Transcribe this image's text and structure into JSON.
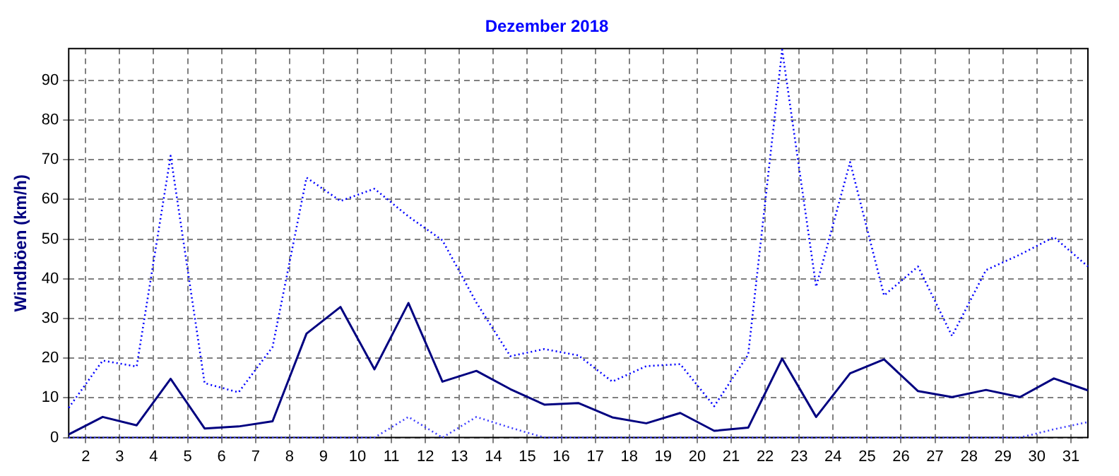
{
  "chart_data": {
    "type": "line",
    "title": "Dezember 2018",
    "ylabel": "Windböen (km/h)",
    "x": [
      1.5,
      2.5,
      3.5,
      4.5,
      5.5,
      6.5,
      7.5,
      8.5,
      9.5,
      10.5,
      11.5,
      12.5,
      13.5,
      14.5,
      15.5,
      16.5,
      17.5,
      18.5,
      19.5,
      20.5,
      21.5,
      22.5,
      23.5,
      24.5,
      25.5,
      26.5,
      27.5,
      28.5,
      29.5,
      30.5,
      31.5
    ],
    "series": [
      {
        "color": "#0000ff",
        "line_style": "dotted",
        "values": [
          7.5,
          19.4,
          17.9,
          71,
          13.7,
          11.4,
          22.8,
          65.5,
          59.6,
          62.7,
          55.7,
          49.7,
          34,
          20.5,
          22.3,
          20.7,
          14.1,
          18,
          18.5,
          7.9,
          20.9,
          97.7,
          38,
          69.4,
          35.8,
          43.1,
          25.6,
          42.2,
          46.1,
          50.5,
          43.1
        ]
      },
      {
        "color": "#000080",
        "line_style": "solid",
        "values": [
          0.8,
          5.2,
          3.1,
          14.8,
          2.3,
          2.8,
          4.1,
          26.2,
          32.9,
          17.2,
          33.9,
          14.1,
          16.8,
          12.2,
          8.3,
          8.7,
          5.1,
          3.6,
          6.2,
          1.7,
          2.5,
          19.9,
          5.2,
          16.2,
          19.7,
          11.7,
          10.2,
          12,
          10.2,
          14.9,
          11.9
        ]
      },
      {
        "color": "#4040ff",
        "line_style": "dotted",
        "values": [
          0,
          0,
          0,
          0,
          0,
          0,
          0,
          0,
          0,
          0,
          5.2,
          0,
          5.2,
          2.5,
          0,
          0,
          0,
          0,
          0,
          0,
          0,
          0,
          0,
          0,
          0,
          0,
          0,
          0,
          0,
          2.1,
          3.9
        ]
      }
    ],
    "xlim": [
      1.5,
      31.5
    ],
    "xticks": [
      2,
      3,
      4,
      5,
      6,
      7,
      8,
      9,
      10,
      11,
      12,
      13,
      14,
      15,
      16,
      17,
      18,
      19,
      20,
      21,
      22,
      23,
      24,
      25,
      26,
      27,
      28,
      29,
      30,
      31
    ],
    "ylim": [
      0,
      98
    ],
    "yticks": [
      0,
      10,
      20,
      30,
      40,
      50,
      60,
      70,
      80,
      90
    ],
    "grid": true,
    "legend": false,
    "marker": "none"
  }
}
